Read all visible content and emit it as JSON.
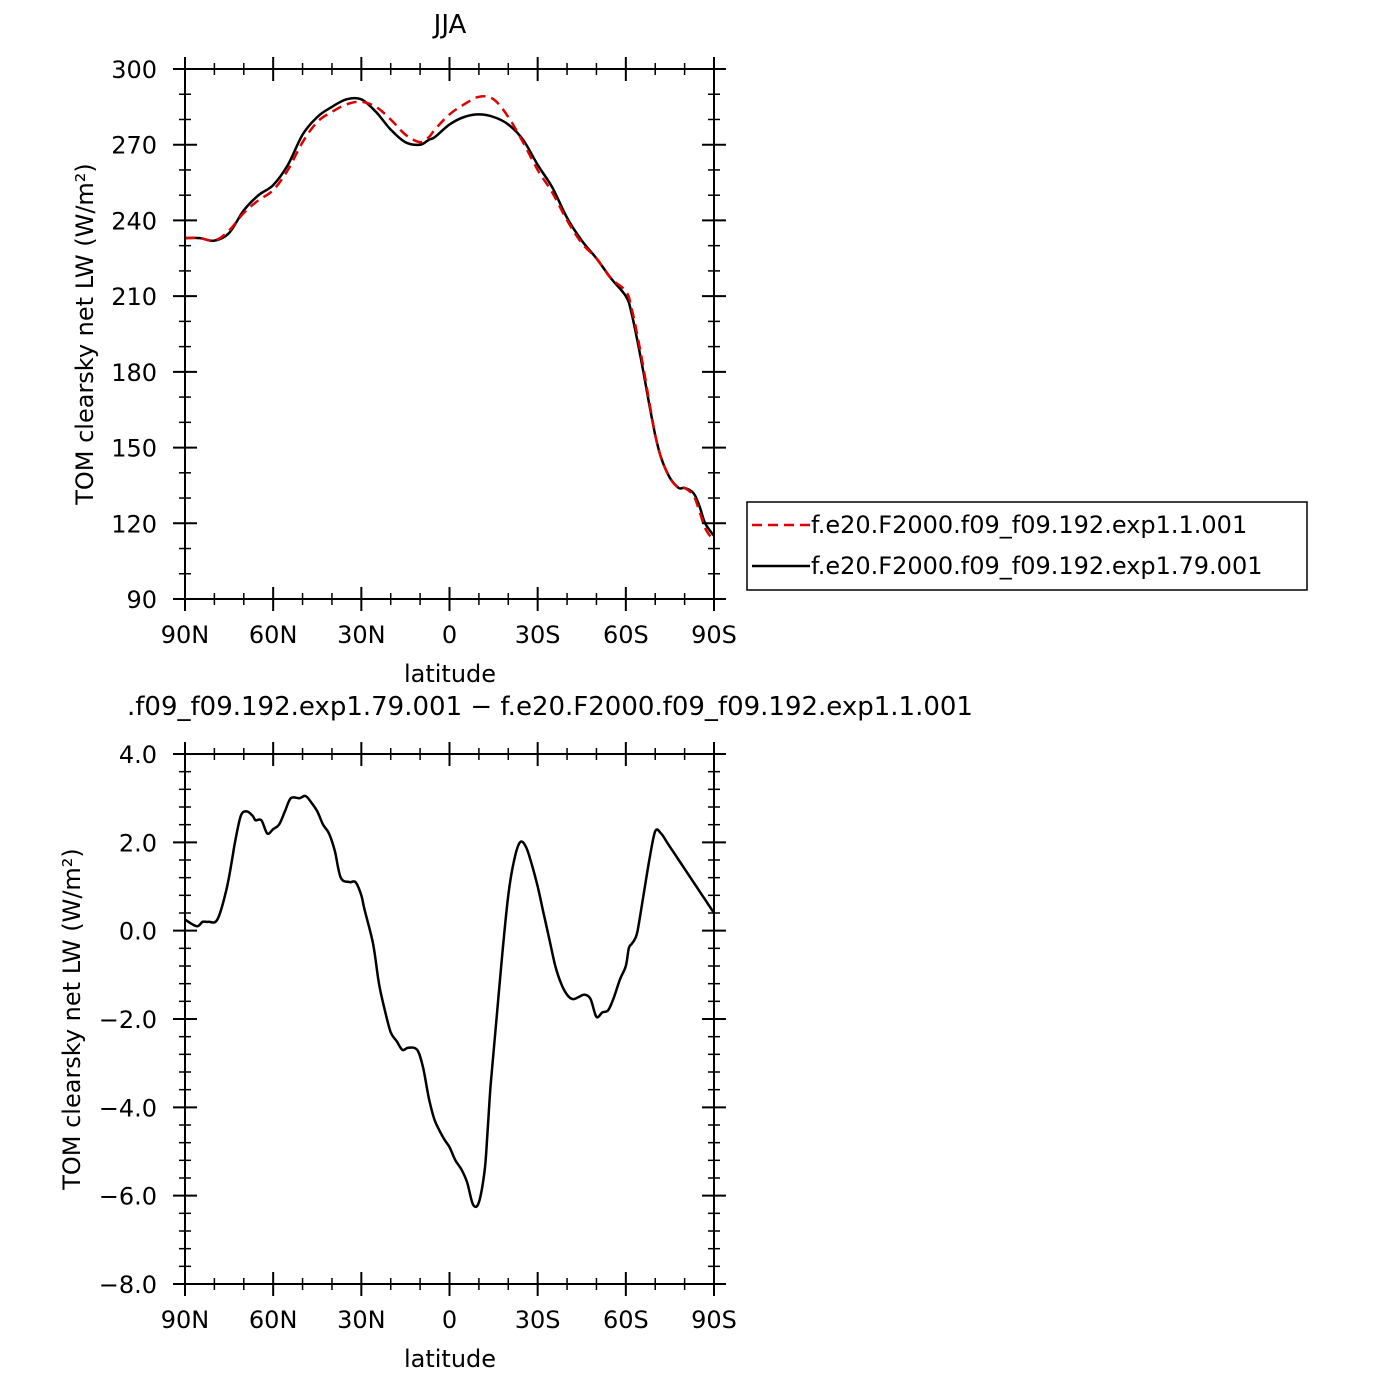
{
  "chart_data": [
    {
      "type": "line",
      "title": "JJA",
      "xlabel": "latitude",
      "ylabel": "TOM clearsky net LW (W/m²)",
      "x_ticks": [
        90,
        60,
        30,
        0,
        -30,
        -60,
        -90
      ],
      "x_tick_labels": [
        "90N",
        "60N",
        "30N",
        "0",
        "30S",
        "60S",
        "90S"
      ],
      "xlim": [
        90,
        -90
      ],
      "ylim": [
        90,
        300
      ],
      "y_ticks": [
        90,
        120,
        150,
        180,
        210,
        240,
        270,
        300
      ],
      "y_tick_labels": [
        "90",
        "120",
        "150",
        "180",
        "210",
        "240",
        "270",
        "300"
      ],
      "grid": false,
      "legend_position": "right",
      "series": [
        {
          "name": "f.e20.F2000.f09_f09.192.exp1.1.001",
          "color": "#e00000",
          "style": "dashed",
          "x": [
            90,
            85,
            80,
            75,
            70,
            65,
            60,
            55,
            50,
            45,
            40,
            35,
            30,
            25,
            20,
            15,
            10,
            7,
            5,
            0,
            -5,
            -10,
            -15,
            -20,
            -25,
            -30,
            -35,
            -40,
            -45,
            -50,
            -55,
            -60,
            -62,
            -65,
            -68,
            -70,
            -72,
            -75,
            -78,
            -80,
            -83,
            -85,
            -87,
            -90
          ],
          "y": [
            233,
            233,
            232,
            236,
            243,
            248,
            252,
            260,
            271,
            279,
            283,
            286,
            287,
            285,
            280,
            274,
            271,
            273,
            276,
            282,
            286,
            289,
            288,
            281,
            271,
            260,
            251,
            240,
            231,
            225,
            217,
            212,
            205,
            188,
            168,
            155,
            146,
            138,
            134,
            134,
            131,
            125,
            118,
            113
          ]
        },
        {
          "name": "f.e20.F2000.f09_f09.192.exp1.79.001",
          "color": "#000000",
          "style": "solid",
          "x": [
            90,
            85,
            80,
            75,
            70,
            65,
            60,
            55,
            50,
            45,
            40,
            35,
            30,
            25,
            20,
            15,
            10,
            7,
            5,
            0,
            -5,
            -10,
            -15,
            -20,
            -25,
            -30,
            -35,
            -40,
            -45,
            -50,
            -55,
            -60,
            -62,
            -65,
            -68,
            -70,
            -72,
            -75,
            -78,
            -80,
            -83,
            -85,
            -87,
            -90
          ],
          "y": [
            233,
            233,
            232,
            235,
            244,
            250,
            254,
            262,
            274,
            281,
            285,
            288,
            288,
            283,
            276,
            271,
            270,
            272,
            273,
            278,
            281,
            282,
            281,
            278,
            272,
            262,
            253,
            241,
            232,
            225,
            217,
            210,
            203,
            186,
            167,
            155,
            146,
            138,
            134,
            134,
            132,
            127,
            120,
            115
          ]
        }
      ]
    },
    {
      "type": "line",
      "title": ".f09_f09.192.exp1.79.001 − f.e20.F2000.f09_f09.192.exp1.1.001",
      "xlabel": "latitude",
      "ylabel": "TOM clearsky net LW (W/m²)",
      "x_ticks": [
        90,
        60,
        30,
        0,
        -30,
        -60,
        -90
      ],
      "x_tick_labels": [
        "90N",
        "60N",
        "30N",
        "0",
        "30S",
        "60S",
        "90S"
      ],
      "xlim": [
        90,
        -90
      ],
      "ylim": [
        -8,
        4
      ],
      "y_ticks": [
        -8,
        -6,
        -4,
        -2,
        0,
        2,
        4
      ],
      "y_tick_labels": [
        "−8.0",
        "−6.0",
        "−4.0",
        "−2.0",
        "0.0",
        "2.0",
        "4.0"
      ],
      "grid": false,
      "series": [
        {
          "color": "#000000",
          "style": "solid",
          "x": [
            90,
            86,
            84,
            82,
            79,
            76,
            74,
            73,
            71,
            69,
            67,
            66,
            64,
            62,
            60,
            58,
            56,
            54,
            51,
            49,
            47,
            45,
            43,
            41,
            39,
            37,
            34,
            32,
            30,
            29,
            26,
            24,
            22,
            20,
            18,
            16,
            14,
            11,
            9,
            7,
            5,
            2,
            0,
            -2,
            -4,
            -6,
            -8,
            -10,
            -12,
            -13,
            -14,
            -16,
            -18,
            -20,
            -22,
            -24,
            -26,
            -28,
            -30,
            -32,
            -34,
            -36,
            -38,
            -40,
            -42,
            -44,
            -46,
            -48,
            -50,
            -52,
            -54,
            -56,
            -58,
            -60,
            -61,
            -62,
            -63,
            -64,
            -66,
            -68,
            -70,
            -72,
            -74,
            -76,
            -78,
            -80,
            -82,
            -84,
            -86,
            -88,
            -90
          ],
          "y": [
            0.25,
            0.1,
            0.2,
            0.2,
            0.25,
            0.9,
            1.6,
            2.0,
            2.6,
            2.7,
            2.6,
            2.5,
            2.5,
            2.2,
            2.3,
            2.4,
            2.7,
            3.0,
            3.0,
            3.05,
            2.9,
            2.7,
            2.4,
            2.2,
            1.8,
            1.2,
            1.1,
            1.1,
            0.8,
            0.5,
            -0.3,
            -1.2,
            -1.8,
            -2.3,
            -2.5,
            -2.7,
            -2.65,
            -2.7,
            -3.1,
            -3.8,
            -4.3,
            -4.7,
            -4.9,
            -5.2,
            -5.4,
            -5.7,
            -6.2,
            -6.15,
            -5.4,
            -4.5,
            -3.5,
            -2.0,
            -0.5,
            0.8,
            1.6,
            2.0,
            1.9,
            1.5,
            1.0,
            0.4,
            -0.2,
            -0.8,
            -1.2,
            -1.45,
            -1.55,
            -1.5,
            -1.45,
            -1.55,
            -1.95,
            -1.85,
            -1.8,
            -1.5,
            -1.1,
            -0.8,
            -0.4,
            -0.3,
            -0.2,
            0.0,
            0.8,
            1.6,
            2.25,
            2.2,
            2.0,
            1.8,
            1.6,
            1.4,
            1.2,
            1.0,
            0.8,
            0.6,
            0.4
          ],
          "note_ignore": ""
        }
      ]
    }
  ]
}
